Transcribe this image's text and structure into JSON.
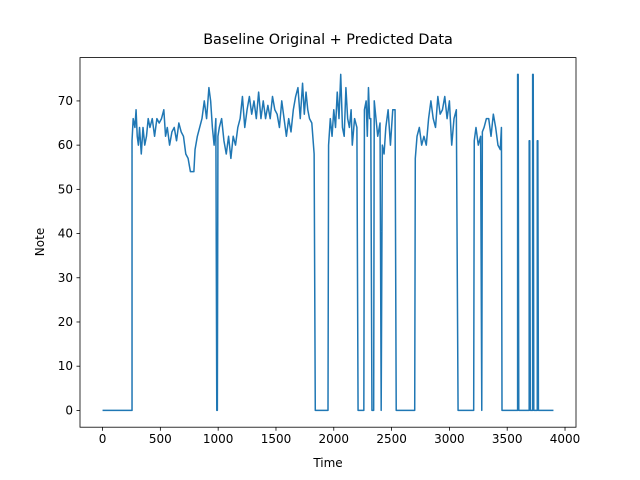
{
  "chart_data": {
    "type": "line",
    "title": "Baseline Original + Predicted Data",
    "x_label": "Time",
    "y_label": "Note",
    "color": "#1f77b4",
    "x": [
      0,
      255,
      255,
      265,
      280,
      290,
      300,
      310,
      320,
      335,
      350,
      365,
      380,
      395,
      410,
      430,
      450,
      470,
      490,
      510,
      530,
      545,
      560,
      580,
      600,
      620,
      640,
      660,
      680,
      700,
      720,
      740,
      760,
      790,
      800,
      820,
      840,
      860,
      880,
      900,
      920,
      935,
      950,
      965,
      980,
      988,
      993,
      998,
      1010,
      1030,
      1050,
      1070,
      1090,
      1110,
      1130,
      1150,
      1170,
      1190,
      1210,
      1230,
      1250,
      1270,
      1290,
      1310,
      1330,
      1350,
      1370,
      1390,
      1410,
      1430,
      1450,
      1470,
      1490,
      1510,
      1530,
      1550,
      1570,
      1590,
      1610,
      1630,
      1650,
      1670,
      1690,
      1710,
      1730,
      1745,
      1760,
      1775,
      1790,
      1810,
      1830,
      1840,
      1950,
      1955,
      1970,
      1985,
      2000,
      2015,
      2030,
      2045,
      2060,
      2075,
      2090,
      2105,
      2120,
      2135,
      2150,
      2160,
      2180,
      2200,
      2210,
      2260,
      2265,
      2280,
      2290,
      2300,
      2310,
      2320,
      2330,
      2345,
      2350,
      2365,
      2380,
      2400,
      2410,
      2420,
      2435,
      2450,
      2470,
      2490,
      2510,
      2530,
      2540,
      2700,
      2705,
      2720,
      2740,
      2760,
      2780,
      2800,
      2820,
      2840,
      2860,
      2880,
      2900,
      2920,
      2940,
      2960,
      2980,
      3000,
      3020,
      3040,
      3060,
      3075,
      3210,
      3215,
      3230,
      3250,
      3270,
      3280,
      3285,
      3300,
      3320,
      3340,
      3360,
      3380,
      3400,
      3420,
      3440,
      3450,
      3455,
      3590,
      3590,
      3595,
      3600,
      3690,
      3690,
      3695,
      3700,
      3720,
      3720,
      3725,
      3730,
      3760,
      3760,
      3765,
      3770,
      3900
    ],
    "values": [
      0,
      0,
      61,
      66,
      64,
      68,
      62,
      60,
      64,
      58,
      64,
      60,
      62,
      66,
      64,
      66,
      62,
      66,
      65,
      66,
      68,
      62,
      64,
      60,
      63,
      64,
      61,
      65,
      63,
      62,
      58,
      57,
      54,
      54,
      59,
      62,
      64,
      66,
      70,
      66,
      73,
      70,
      64,
      60,
      66,
      0,
      0,
      62,
      64,
      66,
      61,
      58,
      62,
      57,
      62,
      60,
      64,
      66,
      71,
      64,
      68,
      71,
      67,
      70,
      66,
      72,
      66,
      70,
      66,
      69,
      66,
      71,
      68,
      67,
      64,
      70,
      66,
      62,
      66,
      63,
      68,
      71,
      73,
      66,
      74,
      67,
      72,
      68,
      66,
      65,
      58,
      0,
      0,
      60,
      66,
      62,
      68,
      64,
      72,
      66,
      76,
      64,
      62,
      73,
      66,
      64,
      68,
      60,
      66,
      64,
      0,
      0,
      68,
      70,
      62,
      73,
      66,
      66,
      0,
      0,
      70,
      66,
      62,
      65,
      0,
      60,
      58,
      64,
      68,
      60,
      68,
      68,
      0,
      0,
      57,
      62,
      64,
      60,
      62,
      60,
      66,
      70,
      66,
      64,
      71,
      67,
      68,
      71,
      66,
      70,
      60,
      66,
      68,
      0,
      0,
      61,
      64,
      60,
      62,
      0,
      63,
      64,
      66,
      66,
      62,
      67,
      64,
      60,
      59,
      64,
      0,
      0,
      76,
      76,
      0,
      0,
      61,
      61,
      0,
      0,
      76,
      76,
      0,
      0,
      61,
      61,
      0,
      0
    ],
    "xlim": [
      -195,
      4095
    ],
    "ylim": [
      -3.8,
      79.8
    ],
    "xticks": [
      0,
      500,
      1000,
      1500,
      2000,
      2500,
      3000,
      3500,
      4000
    ],
    "yticks": [
      0,
      10,
      20,
      30,
      40,
      50,
      60,
      70
    ]
  }
}
